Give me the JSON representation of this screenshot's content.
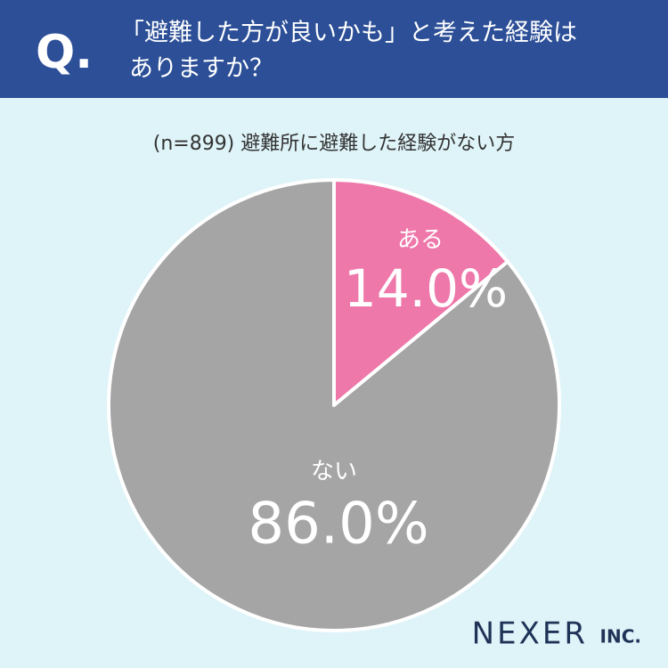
{
  "chart_data": {
    "type": "pie",
    "question_mark": "Q.",
    "title": [
      "「避難した方が良いかも」と考えた経験は",
      "ありますか？"
    ],
    "subtitle": "(n=899) 避難所に避難した経験がない方",
    "categories": [
      "ある",
      "ない"
    ],
    "values": [
      14.0,
      86.0
    ],
    "value_labels": [
      "14.0%",
      "86.0%"
    ],
    "colors": [
      "#ee78aa",
      "#a5a5a5"
    ],
    "logo": "NEXER",
    "logo_suffix": "INC."
  }
}
